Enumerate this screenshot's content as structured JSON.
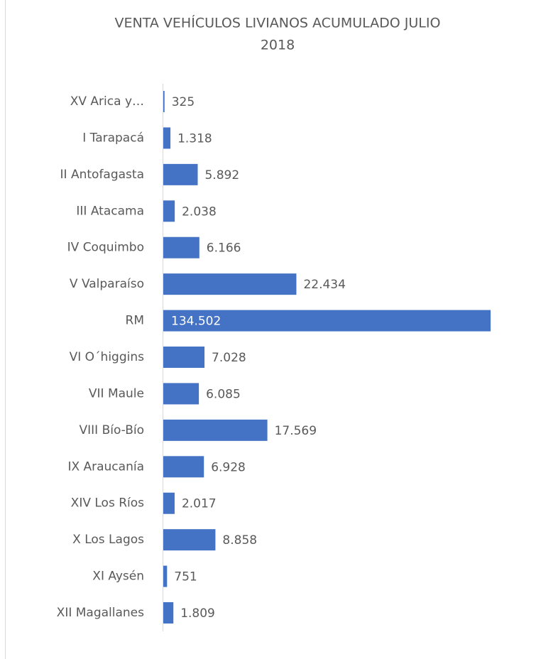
{
  "chart_data": {
    "type": "bar",
    "orientation": "horizontal",
    "title": "VENTA VEHÍCULOS LIVIANOS ACUMULADO JULIO 2018",
    "categories": [
      "XV Arica y…",
      "I Tarapacá",
      "II Antofagasta",
      "III Atacama",
      "IV Coquimbo",
      "V Valparaíso",
      "RM",
      "VI O´higgins",
      "VII Maule",
      "VIII Bío-Bío",
      "IX Araucanía",
      "XIV Los Ríos",
      "X Los Lagos",
      "XI Aysén",
      "XII Magallanes"
    ],
    "values": [
      325,
      1318,
      5892,
      2038,
      6166,
      22434,
      134502,
      7028,
      6085,
      17569,
      6928,
      2017,
      8858,
      751,
      1809
    ],
    "value_labels": [
      "325",
      "1.318",
      "5.892",
      "2.038",
      "6.166",
      "22.434",
      "134.502",
      "7.028",
      "6.085",
      "17.569",
      "6.928",
      "2.017",
      "8.858",
      "751",
      "1.809"
    ],
    "color": "#4472c4",
    "xlim": [
      0,
      55000
    ]
  }
}
